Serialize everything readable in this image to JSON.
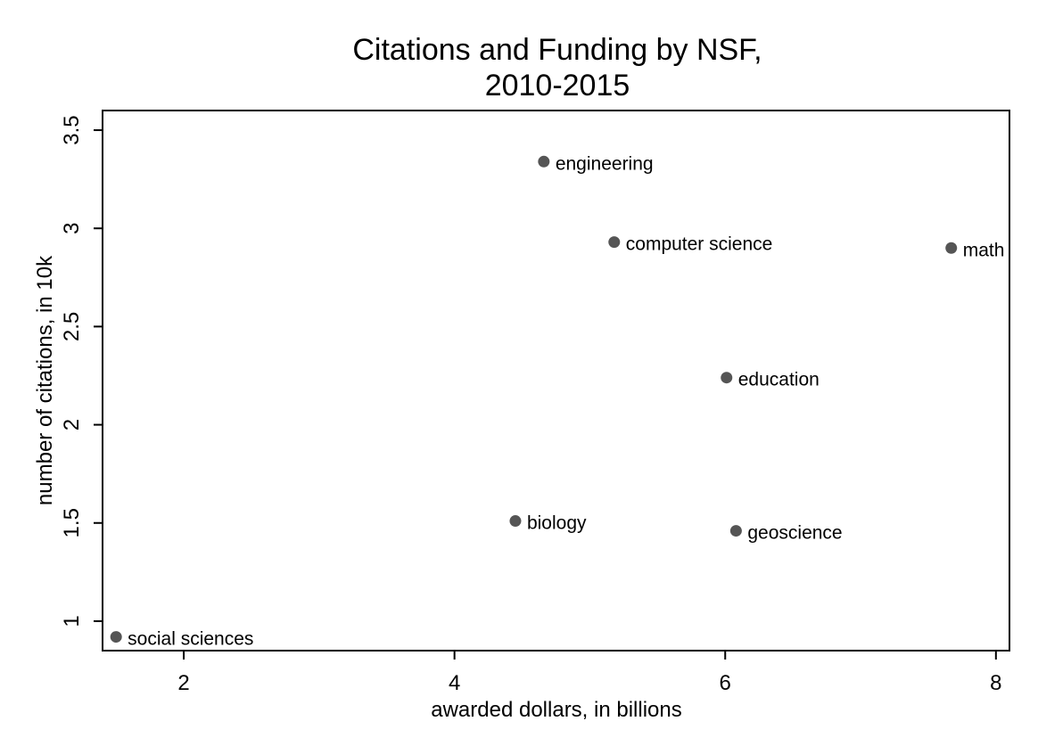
{
  "chart_data": {
    "type": "scatter",
    "title": [
      "Citations and Funding by NSF,",
      "2010-2015"
    ],
    "xlabel": "awarded dollars, in billions",
    "ylabel": "number of citations, in 10k",
    "xlim": [
      1.4,
      8.1
    ],
    "ylim": [
      0.85,
      3.6
    ],
    "x_ticks": [
      2,
      4,
      6,
      8
    ],
    "x_tick_labels": [
      "2",
      "4",
      "6",
      "8"
    ],
    "y_ticks": [
      1,
      1.5,
      2,
      2.5,
      3,
      3.5
    ],
    "y_tick_labels": [
      "1",
      "1.5",
      "2",
      "2.5",
      "3",
      "3.5"
    ],
    "grid": false,
    "marker_color": "#555555",
    "points": [
      {
        "label": "engineering",
        "x": 4.66,
        "y": 3.34
      },
      {
        "label": "computer science",
        "x": 5.18,
        "y": 2.93
      },
      {
        "label": "math",
        "x": 7.67,
        "y": 2.9
      },
      {
        "label": "education",
        "x": 6.01,
        "y": 2.24
      },
      {
        "label": "biology",
        "x": 4.45,
        "y": 1.51
      },
      {
        "label": "geoscience",
        "x": 6.08,
        "y": 1.46
      },
      {
        "label": "social sciences",
        "x": 1.5,
        "y": 0.92
      }
    ]
  }
}
